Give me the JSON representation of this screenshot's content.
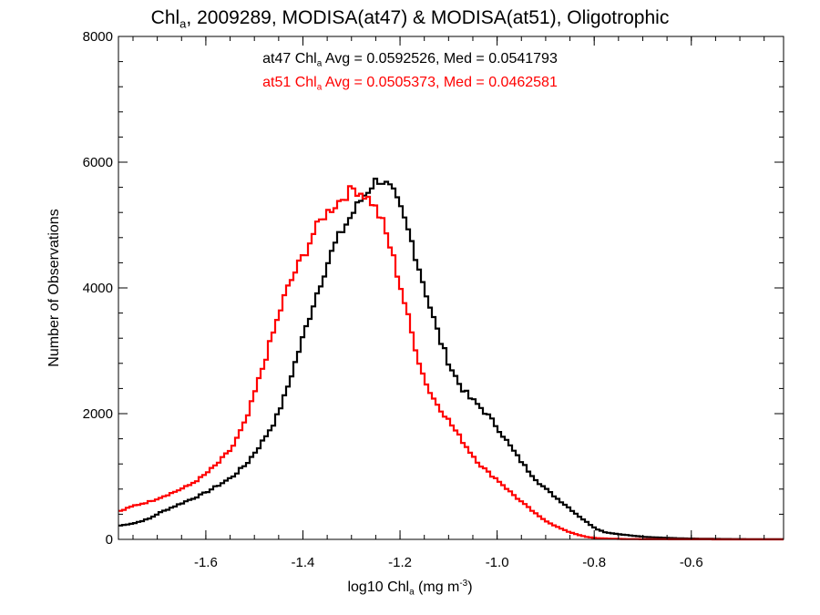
{
  "title": {
    "part1": "Chl",
    "sub": "a",
    "part2": ", 2009289, MODISA(at47) & MODISA(at51), Oligotrophic"
  },
  "stats": [
    {
      "prefix": "at47 Chl",
      "sub": "a",
      "suffix": " Avg = 0.0592526, Med = 0.0541793",
      "color": "#000000"
    },
    {
      "prefix": "at51 Chl",
      "sub": "a",
      "suffix": " Avg = 0.0505373, Med = 0.0462581",
      "color": "#ff0000"
    }
  ],
  "xlabel": {
    "part1": "log10 Chl",
    "sub": "a",
    "part2": " (mg m",
    "sup": "-3",
    "part3": ")"
  },
  "ylabel": "Number of Observations",
  "chart_data": {
    "type": "line",
    "step": true,
    "xlim": [
      -1.78,
      -0.41
    ],
    "ylim": [
      0,
      8000
    ],
    "x_ticks": [
      -1.6,
      -1.4,
      -1.2,
      -1.0,
      -0.8,
      -0.6
    ],
    "x_tick_labels": [
      "-1.6",
      "-1.4",
      "-1.2",
      "-1.0",
      "-0.8",
      "-0.6"
    ],
    "y_ticks": [
      0,
      2000,
      4000,
      6000,
      8000
    ],
    "y_tick_labels": [
      "0",
      "2000",
      "4000",
      "6000",
      "8000"
    ],
    "series": [
      {
        "color": "#000000",
        "points": [
          [
            -1.78,
            220
          ],
          [
            -1.75,
            260
          ],
          [
            -1.72,
            330
          ],
          [
            -1.7,
            420
          ],
          [
            -1.67,
            520
          ],
          [
            -1.64,
            620
          ],
          [
            -1.61,
            720
          ],
          [
            -1.58,
            850
          ],
          [
            -1.55,
            990
          ],
          [
            -1.52,
            1200
          ],
          [
            -1.49,
            1520
          ],
          [
            -1.46,
            1900
          ],
          [
            -1.44,
            2300
          ],
          [
            -1.42,
            2800
          ],
          [
            -1.4,
            3300
          ],
          [
            -1.38,
            3800
          ],
          [
            -1.36,
            4250
          ],
          [
            -1.34,
            4650
          ],
          [
            -1.32,
            4950
          ],
          [
            -1.3,
            5200
          ],
          [
            -1.28,
            5450
          ],
          [
            -1.26,
            5650
          ],
          [
            -1.25,
            5730
          ],
          [
            -1.24,
            5700
          ],
          [
            -1.22,
            5550
          ],
          [
            -1.2,
            5200
          ],
          [
            -1.18,
            4750
          ],
          [
            -1.16,
            4200
          ],
          [
            -1.14,
            3650
          ],
          [
            -1.12,
            3150
          ],
          [
            -1.1,
            2750
          ],
          [
            -1.08,
            2450
          ],
          [
            -1.06,
            2250
          ],
          [
            -1.04,
            2120
          ],
          [
            -1.02,
            1950
          ],
          [
            -1.0,
            1750
          ],
          [
            -0.98,
            1520
          ],
          [
            -0.96,
            1300
          ],
          [
            -0.94,
            1100
          ],
          [
            -0.92,
            920
          ],
          [
            -0.9,
            780
          ],
          [
            -0.88,
            650
          ],
          [
            -0.86,
            530
          ],
          [
            -0.84,
            400
          ],
          [
            -0.82,
            280
          ],
          [
            -0.8,
            170
          ],
          [
            -0.78,
            110
          ],
          [
            -0.75,
            80
          ],
          [
            -0.72,
            55
          ],
          [
            -0.7,
            40
          ],
          [
            -0.66,
            25
          ],
          [
            -0.62,
            15
          ],
          [
            -0.58,
            10
          ],
          [
            -0.54,
            6
          ],
          [
            -0.5,
            4
          ],
          [
            -0.45,
            2
          ],
          [
            -0.41,
            2
          ]
        ]
      },
      {
        "color": "#ff0000",
        "points": [
          [
            -1.78,
            450
          ],
          [
            -1.75,
            540
          ],
          [
            -1.72,
            600
          ],
          [
            -1.7,
            660
          ],
          [
            -1.67,
            750
          ],
          [
            -1.64,
            850
          ],
          [
            -1.61,
            1000
          ],
          [
            -1.58,
            1200
          ],
          [
            -1.55,
            1450
          ],
          [
            -1.52,
            1900
          ],
          [
            -1.5,
            2400
          ],
          [
            -1.48,
            2900
          ],
          [
            -1.46,
            3400
          ],
          [
            -1.44,
            3900
          ],
          [
            -1.42,
            4250
          ],
          [
            -1.4,
            4550
          ],
          [
            -1.38,
            4900
          ],
          [
            -1.36,
            5150
          ],
          [
            -1.34,
            5300
          ],
          [
            -1.32,
            5450
          ],
          [
            -1.3,
            5580
          ],
          [
            -1.28,
            5500
          ],
          [
            -1.26,
            5350
          ],
          [
            -1.24,
            5050
          ],
          [
            -1.22,
            4550
          ],
          [
            -1.2,
            3950
          ],
          [
            -1.18,
            3300
          ],
          [
            -1.16,
            2700
          ],
          [
            -1.14,
            2300
          ],
          [
            -1.12,
            2080
          ],
          [
            -1.1,
            1850
          ],
          [
            -1.08,
            1620
          ],
          [
            -1.06,
            1400
          ],
          [
            -1.04,
            1200
          ],
          [
            -1.02,
            1050
          ],
          [
            -1.0,
            930
          ],
          [
            -0.98,
            780
          ],
          [
            -0.96,
            640
          ],
          [
            -0.94,
            510
          ],
          [
            -0.92,
            380
          ],
          [
            -0.9,
            280
          ],
          [
            -0.88,
            200
          ],
          [
            -0.86,
            130
          ],
          [
            -0.84,
            80
          ],
          [
            -0.82,
            40
          ],
          [
            -0.8,
            20
          ],
          [
            -0.77,
            10
          ],
          [
            -0.74,
            5
          ],
          [
            -0.7,
            3
          ],
          [
            -0.64,
            2
          ],
          [
            -0.58,
            1
          ],
          [
            -0.5,
            0
          ],
          [
            -0.41,
            0
          ]
        ]
      }
    ]
  }
}
